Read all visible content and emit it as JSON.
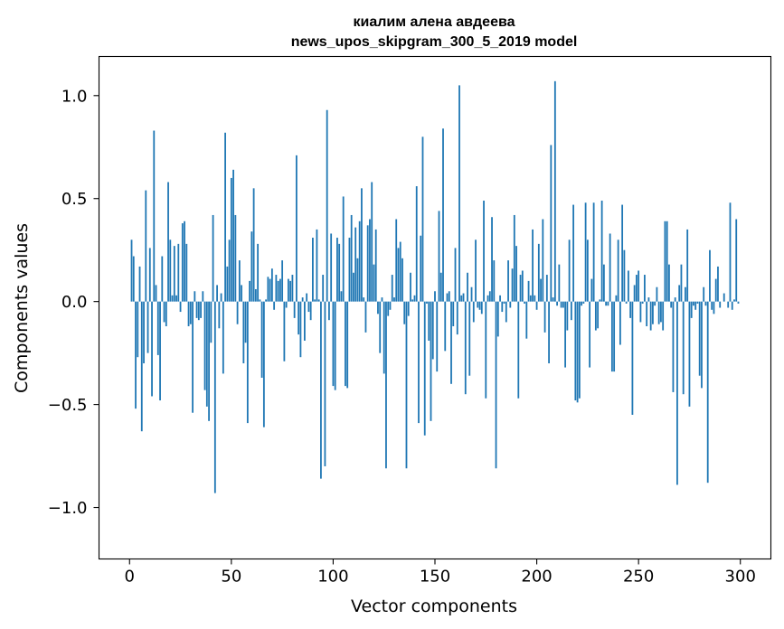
{
  "chart_data": {
    "type": "bar",
    "title": "киалим алена авдеева\nnews_upos_skipgram_300_5_2019 model",
    "xlabel": "Vector components",
    "ylabel": "Components values",
    "xlim": [
      -15,
      315
    ],
    "ylim": [
      -1.25,
      1.19
    ],
    "xticks": [
      0,
      50,
      100,
      150,
      200,
      250,
      300
    ],
    "yticks": [
      -1.0,
      -0.5,
      0.0,
      0.5,
      1.0
    ],
    "xtick_labels": [
      "0",
      "50",
      "100",
      "150",
      "200",
      "250",
      "300"
    ],
    "ytick_labels": [
      "−1.0",
      "−0.5",
      "0.0",
      "0.5",
      "1.0"
    ],
    "bar_color": "#1f77b4",
    "grid": false,
    "values": [
      0.0,
      0.3,
      0.22,
      -0.52,
      -0.27,
      0.17,
      -0.63,
      -0.3,
      0.54,
      -0.25,
      0.26,
      -0.46,
      0.83,
      0.08,
      -0.26,
      -0.48,
      0.22,
      -0.1,
      -0.12,
      0.58,
      0.3,
      0.03,
      0.27,
      0.03,
      0.28,
      -0.05,
      0.38,
      0.39,
      0.28,
      -0.12,
      -0.11,
      -0.54,
      0.05,
      -0.08,
      -0.09,
      -0.08,
      0.05,
      -0.43,
      -0.51,
      -0.58,
      -0.2,
      0.42,
      -0.93,
      0.08,
      -0.13,
      0.04,
      -0.35,
      0.82,
      0.17,
      0.3,
      0.6,
      0.64,
      0.42,
      -0.11,
      0.2,
      0.08,
      -0.3,
      -0.2,
      -0.59,
      0.1,
      0.34,
      0.55,
      0.06,
      0.28,
      0.01,
      -0.37,
      -0.61,
      0.01,
      0.12,
      0.11,
      0.16,
      -0.04,
      0.13,
      0.1,
      0.11,
      0.2,
      -0.29,
      -0.03,
      0.11,
      0.1,
      0.13,
      -0.08,
      0.71,
      -0.16,
      -0.27,
      0.02,
      -0.19,
      0.04,
      -0.05,
      -0.09,
      0.31,
      0.01,
      0.35,
      0.01,
      -0.86,
      0.13,
      -0.8,
      0.93,
      -0.09,
      0.33,
      -0.41,
      -0.43,
      0.31,
      0.28,
      0.05,
      0.51,
      -0.41,
      -0.42,
      0.31,
      0.42,
      0.14,
      0.36,
      0.21,
      0.39,
      0.55,
      0.02,
      -0.15,
      0.37,
      0.4,
      0.58,
      0.18,
      0.35,
      -0.06,
      -0.25,
      0.02,
      -0.35,
      -0.81,
      -0.07,
      -0.04,
      0.13,
      0.02,
      0.4,
      0.26,
      0.29,
      0.21,
      -0.11,
      -0.81,
      -0.07,
      0.14,
      0.01,
      0.03,
      0.56,
      -0.59,
      0.32,
      0.8,
      -0.65,
      -0.01,
      -0.19,
      -0.58,
      -0.28,
      0.05,
      -0.34,
      0.44,
      0.14,
      0.84,
      -0.24,
      0.04,
      0.05,
      -0.4,
      -0.12,
      0.26,
      -0.16,
      1.05,
      0.03,
      0.04,
      -0.45,
      0.14,
      -0.36,
      0.07,
      -0.1,
      0.3,
      -0.03,
      -0.04,
      -0.06,
      0.49,
      -0.47,
      0.03,
      0.05,
      0.41,
      0.2,
      -0.81,
      -0.17,
      0.03,
      -0.05,
      -0.01,
      -0.1,
      0.2,
      -0.03,
      0.16,
      0.42,
      0.27,
      -0.47,
      0.13,
      0.15,
      -0.01,
      -0.18,
      0.1,
      0.03,
      0.35,
      0.03,
      -0.04,
      0.28,
      0.11,
      0.4,
      -0.15,
      0.13,
      -0.3,
      0.76,
      0.02,
      1.07,
      -0.02,
      0.18,
      -0.03,
      -0.03,
      -0.32,
      -0.14,
      0.3,
      -0.09,
      0.47,
      -0.48,
      -0.49,
      -0.47,
      -0.02,
      -0.01,
      0.48,
      0.3,
      -0.32,
      0.11,
      0.48,
      -0.14,
      -0.13,
      0.01,
      0.49,
      0.18,
      -0.02,
      -0.02,
      0.33,
      -0.34,
      -0.34,
      0.03,
      0.3,
      -0.21,
      0.47,
      0.25,
      -0.01,
      0.15,
      -0.08,
      -0.55,
      0.08,
      0.13,
      0.15,
      -0.1,
      -0.01,
      0.13,
      -0.12,
      0.02,
      -0.14,
      -0.11,
      -0.02,
      0.07,
      -0.11,
      -0.1,
      -0.14,
      0.39,
      0.39,
      0.18,
      -0.03,
      -0.44,
      0.02,
      -0.89,
      0.08,
      0.18,
      -0.45,
      0.07,
      0.35,
      -0.51,
      -0.08,
      -0.02,
      -0.04,
      -0.01,
      -0.36,
      -0.42,
      0.07,
      -0.02,
      -0.88,
      0.25,
      -0.04,
      -0.06,
      0.11,
      0.17,
      -0.03,
      0.0,
      0.04,
      0.0,
      -0.03,
      0.48,
      -0.04,
      0.01,
      0.4,
      -0.01
    ]
  }
}
